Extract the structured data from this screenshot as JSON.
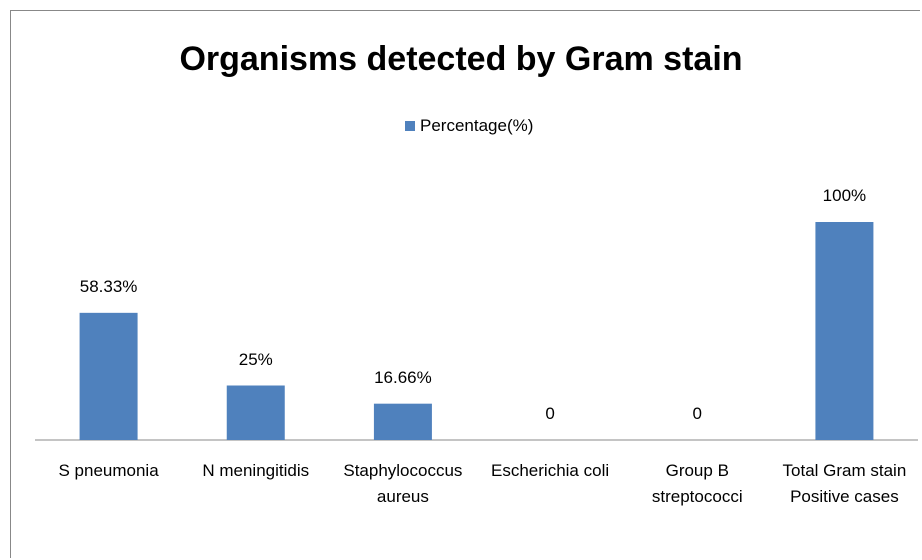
{
  "chart_data": {
    "type": "bar",
    "title": "Organisms detected by Gram stain",
    "categories": [
      "S pneumonia",
      "N meningitidis",
      "Staphylococcus aureus",
      "Escherichia coli",
      "Group B streptococci",
      "Total Gram stain Positive cases"
    ],
    "series": [
      {
        "name": "Percentage(%)",
        "color": "#4f81bd",
        "values": [
          58.33,
          25,
          16.66,
          0,
          0,
          100
        ],
        "value_labels": [
          "58.33%",
          "25%",
          "16.66%",
          "0",
          "0",
          "100%"
        ]
      }
    ],
    "legend": "top"
  }
}
